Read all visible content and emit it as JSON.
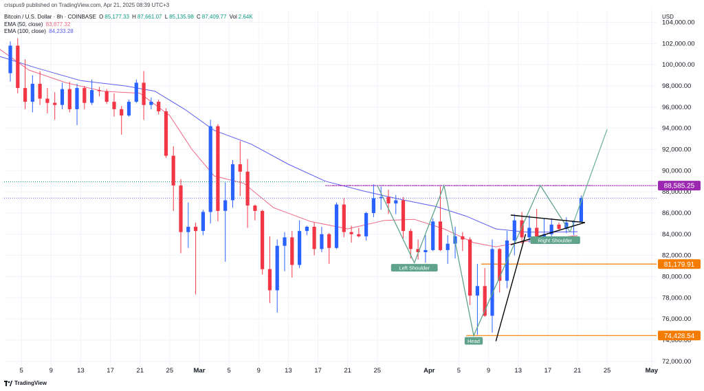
{
  "header": {
    "published": "crispus9 published on TradingView.com, Apr 21, 2025 08:39 UTC+3"
  },
  "legend": {
    "symbol": "Bitcoin / U.S. Dollar · 8h · COINBASE",
    "o_label": "O",
    "o": "85,177.33",
    "h_label": "H",
    "h": "87,661.07",
    "l_label": "L",
    "l": "85,135.98",
    "c_label": "C",
    "c": "87,409.77",
    "vol_label": "Vol",
    "vol": "2.64K",
    "ema50_label": "EMA (50, close)",
    "ema50": "83,877.32",
    "ema100_label": "EMA (100, close)",
    "ema100": "84,233.28"
  },
  "currency": "USD",
  "footer": {
    "brand": "TradingView"
  },
  "colors": {
    "up": "#2962ff",
    "down": "#f23645",
    "ema50": "#f06683",
    "ema100": "#5b5bf0",
    "pattern": "#5fa38b",
    "projection": "#6fb596",
    "support": "#f57c00",
    "resistance": "#9c27b0",
    "triangle": "#000000",
    "grid": "#f0f3fa",
    "axis_text": "#131722"
  },
  "chart_data": {
    "type": "candlestick",
    "series_name": "Bitcoin / U.S. Dollar",
    "interval": "8h",
    "y_axis": {
      "ticks": [
        72000,
        74000,
        76000,
        78000,
        80000,
        82000,
        84000,
        86000,
        88000,
        90000,
        92000,
        94000,
        96000,
        98000,
        100000,
        102000,
        104000
      ],
      "tick_labels": [
        "72,000.00",
        "74,000.00",
        "76,000.00",
        "78,000.00",
        "80,000.00",
        "82,000.00",
        "84,000.00",
        "86,000.00",
        "88,000.00",
        "90,000.00",
        "92,000.00",
        "94,000.00",
        "96,000.00",
        "98,000.00",
        "100,000.00",
        "102,000.00",
        "104,000.00"
      ],
      "range": [
        71400,
        105200
      ],
      "side": "right"
    },
    "x_axis": {
      "range": [
        "2025-02-02T16:00",
        "2025-05-01T16:00"
      ],
      "ticks": [
        {
          "date": "2025-02-05",
          "label": "5"
        },
        {
          "date": "2025-02-09",
          "label": "9"
        },
        {
          "date": "2025-02-13",
          "label": "13"
        },
        {
          "date": "2025-02-17",
          "label": "17"
        },
        {
          "date": "2025-02-21",
          "label": "21"
        },
        {
          "date": "2025-02-25",
          "label": "25"
        },
        {
          "date": "2025-03-01",
          "label": "Mar"
        },
        {
          "date": "2025-03-05",
          "label": "5"
        },
        {
          "date": "2025-03-09",
          "label": "9"
        },
        {
          "date": "2025-03-13",
          "label": "13"
        },
        {
          "date": "2025-03-17",
          "label": "17"
        },
        {
          "date": "2025-03-21",
          "label": "21"
        },
        {
          "date": "2025-03-25",
          "label": "25"
        },
        {
          "date": "2025-04-01",
          "label": "Apr"
        },
        {
          "date": "2025-04-05",
          "label": "5"
        },
        {
          "date": "2025-04-09",
          "label": "9"
        },
        {
          "date": "2025-04-13",
          "label": "13"
        },
        {
          "date": "2025-04-17",
          "label": "17"
        },
        {
          "date": "2025-04-21",
          "label": "21"
        },
        {
          "date": "2025-04-25",
          "label": "25"
        },
        {
          "date": "2025-05-01",
          "label": "May"
        }
      ]
    },
    "ema_50": [
      [
        "2025-02-02",
        101500
      ],
      [
        "2025-02-06",
        99500
      ],
      [
        "2025-02-11",
        98300
      ],
      [
        "2025-02-16",
        97500
      ],
      [
        "2025-02-21",
        97300
      ],
      [
        "2025-02-25",
        95200
      ],
      [
        "2025-02-28",
        92000
      ],
      [
        "2025-03-03",
        89500
      ],
      [
        "2025-03-07",
        88800
      ],
      [
        "2025-03-11",
        86500
      ],
      [
        "2025-03-16",
        85200
      ],
      [
        "2025-03-21",
        84500
      ],
      [
        "2025-03-26",
        85300
      ],
      [
        "2025-03-30",
        85400
      ],
      [
        "2025-04-03",
        84500
      ],
      [
        "2025-04-07",
        83200
      ],
      [
        "2025-04-10",
        82800
      ],
      [
        "2025-04-13",
        83200
      ],
      [
        "2025-04-16",
        83500
      ],
      [
        "2025-04-21",
        83877
      ]
    ],
    "ema_100": [
      [
        "2025-02-02",
        100800
      ],
      [
        "2025-02-07",
        99700
      ],
      [
        "2025-02-13",
        98500
      ],
      [
        "2025-02-19",
        98000
      ],
      [
        "2025-02-23",
        97500
      ],
      [
        "2025-02-27",
        95800
      ],
      [
        "2025-03-03",
        93800
      ],
      [
        "2025-03-08",
        92500
      ],
      [
        "2025-03-13",
        90600
      ],
      [
        "2025-03-18",
        89000
      ],
      [
        "2025-03-23",
        88100
      ],
      [
        "2025-03-28",
        87300
      ],
      [
        "2025-04-02",
        86600
      ],
      [
        "2025-04-06",
        85700
      ],
      [
        "2025-04-10",
        84500
      ],
      [
        "2025-04-14",
        84200
      ],
      [
        "2025-04-18",
        84200
      ],
      [
        "2025-04-21",
        84233
      ]
    ],
    "horizontal_levels": [
      {
        "value": 88585.25,
        "label": "88,585.25",
        "color": "#9c27b0",
        "from": "2025-03-18"
      },
      {
        "value": 81179.91,
        "label": "81,179.91",
        "color": "#f57c00",
        "from": "2025-04-08"
      },
      {
        "value": 74428.54,
        "label": "74,428.54",
        "color": "#f57c00",
        "from": "2025-04-06"
      }
    ],
    "dotted_levels": [
      {
        "value": 88950,
        "color": "#089981",
        "to": "2025-03-18"
      },
      {
        "value": 87409.77,
        "color": "#5b5bf0"
      }
    ],
    "head_and_shoulders": [
      [
        "2025-03-25",
        88600
      ],
      [
        "2025-03-30",
        81300
      ],
      [
        "2025-04-03",
        88600
      ],
      [
        "2025-04-07",
        74430
      ],
      [
        "2025-04-16",
        88600
      ],
      [
        "2025-04-20",
        84200
      ]
    ],
    "neckline": [
      [
        "2025-03-19",
        88600
      ],
      [
        "2025-04-23",
        88600
      ]
    ],
    "projection": [
      [
        "2025-04-20",
        84200
      ],
      [
        "2025-04-25",
        93900
      ]
    ],
    "triangle": [
      [
        [
          "2025-04-12",
          85800
        ],
        [
          "2025-04-22",
          85100
        ]
      ],
      [
        [
          "2025-04-12",
          83000
        ],
        [
          "2025-04-22",
          85100
        ]
      ],
      [
        [
          "2025-04-10",
          73900
        ],
        [
          "2025-04-14",
          84000
        ]
      ]
    ],
    "annotations": [
      {
        "text": "Left Shoulder",
        "date": "2025-03-30",
        "value": 80800
      },
      {
        "text": "Head",
        "date": "2025-04-07",
        "value": 73900
      },
      {
        "text": "Right Shoulder",
        "date": "2025-04-18",
        "value": 83400
      }
    ],
    "candles": [
      [
        "2025-02-03",
        99200,
        102200,
        98400,
        101800
      ],
      [
        "2025-02-04",
        101800,
        102500,
        97300,
        97800
      ],
      [
        "2025-02-05",
        97800,
        100500,
        95800,
        96500
      ],
      [
        "2025-02-06",
        96500,
        99000,
        95500,
        98200
      ],
      [
        "2025-02-07",
        98200,
        99400,
        96200,
        96800
      ],
      [
        "2025-02-08",
        96800,
        97800,
        95400,
        96400
      ],
      [
        "2025-02-09",
        96400,
        97400,
        94800,
        96200
      ],
      [
        "2025-02-10",
        96200,
        98300,
        95800,
        97700
      ],
      [
        "2025-02-11",
        97700,
        98400,
        95500,
        95800
      ],
      [
        "2025-02-12",
        95800,
        98200,
        94300,
        97800
      ],
      [
        "2025-02-13",
        97800,
        98000,
        95800,
        96400
      ],
      [
        "2025-02-14",
        96400,
        98600,
        96200,
        97600
      ],
      [
        "2025-02-15",
        97600,
        97900,
        97000,
        97500
      ],
      [
        "2025-02-16",
        97500,
        97700,
        96300,
        96500
      ],
      [
        "2025-02-17",
        96500,
        97300,
        95100,
        95800
      ],
      [
        "2025-02-18",
        95800,
        96100,
        93400,
        95200
      ],
      [
        "2025-02-19",
        95200,
        96700,
        95100,
        96500
      ],
      [
        "2025-02-20",
        96500,
        98600,
        96400,
        98300
      ],
      [
        "2025-02-21",
        98300,
        99400,
        94800,
        96200
      ],
      [
        "2025-02-22",
        96200,
        96900,
        95800,
        96500
      ],
      [
        "2025-02-23",
        96500,
        96700,
        95300,
        95600
      ],
      [
        "2025-02-24",
        95600,
        95900,
        91200,
        91400
      ],
      [
        "2025-02-25",
        91400,
        92300,
        86200,
        88600
      ],
      [
        "2025-02-26",
        88600,
        89200,
        82200,
        84200
      ],
      [
        "2025-02-27",
        84200,
        87000,
        82700,
        84700
      ],
      [
        "2025-02-28",
        84700,
        85100,
        78300,
        84300
      ],
      [
        "2025-03-01",
        84300,
        86300,
        83900,
        86100
      ],
      [
        "2025-03-02",
        86100,
        94800,
        85000,
        94200
      ],
      [
        "2025-03-03",
        94200,
        94400,
        85200,
        86200
      ],
      [
        "2025-03-04",
        86200,
        88900,
        81400,
        87200
      ],
      [
        "2025-03-05",
        87200,
        91000,
        86500,
        90600
      ],
      [
        "2025-03-06",
        90600,
        92800,
        87600,
        89900
      ],
      [
        "2025-03-07",
        89900,
        91100,
        84600,
        86700
      ],
      [
        "2025-03-08",
        86700,
        86800,
        85300,
        86200
      ],
      [
        "2025-03-09",
        86200,
        86300,
        80200,
        80700
      ],
      [
        "2025-03-10",
        80700,
        83800,
        77500,
        78700
      ],
      [
        "2025-03-11",
        78700,
        83500,
        76600,
        82900
      ],
      [
        "2025-03-12",
        82900,
        84200,
        80500,
        83700
      ],
      [
        "2025-03-13",
        83700,
        84300,
        79900,
        81100
      ],
      [
        "2025-03-14",
        81100,
        85300,
        80800,
        84300
      ],
      [
        "2025-03-15",
        84300,
        84800,
        83900,
        84700
      ],
      [
        "2025-03-16",
        84700,
        85100,
        82000,
        82600
      ],
      [
        "2025-03-17",
        82600,
        84700,
        82300,
        84000
      ],
      [
        "2025-03-18",
        84000,
        84100,
        81200,
        82700
      ],
      [
        "2025-03-19",
        82700,
        87000,
        82600,
        86800
      ],
      [
        "2025-03-20",
        86800,
        87400,
        83700,
        84200
      ],
      [
        "2025-03-21",
        84200,
        84800,
        83200,
        84000
      ],
      [
        "2025-03-22",
        84000,
        84600,
        83700,
        83800
      ],
      [
        "2025-03-23",
        83800,
        86100,
        83400,
        86000
      ],
      [
        "2025-03-24",
        86000,
        88700,
        85600,
        87400
      ],
      [
        "2025-03-25",
        87400,
        88500,
        86300,
        87500
      ],
      [
        "2025-03-26",
        87500,
        88200,
        85900,
        86900
      ],
      [
        "2025-03-27",
        86900,
        87700,
        85900,
        87200
      ],
      [
        "2025-03-28",
        87200,
        87500,
        83600,
        84300
      ],
      [
        "2025-03-29",
        84300,
        84500,
        81700,
        82600
      ],
      [
        "2025-03-30",
        82600,
        83500,
        81600,
        82300
      ],
      [
        "2025-03-31",
        82300,
        83900,
        81300,
        82500
      ],
      [
        "2025-04-01",
        82500,
        85500,
        82400,
        85200
      ],
      [
        "2025-04-02",
        85200,
        88500,
        82400,
        82500
      ],
      [
        "2025-04-03",
        82500,
        83900,
        81200,
        83100
      ],
      [
        "2025-04-04",
        83100,
        84700,
        81700,
        83800
      ],
      [
        "2025-04-05",
        83800,
        84200,
        82400,
        83500
      ],
      [
        "2025-04-06",
        83500,
        83700,
        77300,
        78200
      ],
      [
        "2025-04-07",
        78200,
        81200,
        74500,
        79100
      ],
      [
        "2025-04-08",
        79100,
        80800,
        76200,
        76300
      ],
      [
        "2025-04-09",
        76300,
        83500,
        74700,
        82600
      ],
      [
        "2025-04-10",
        82600,
        82700,
        78500,
        79600
      ],
      [
        "2025-04-11",
        79600,
        84300,
        78900,
        83400
      ],
      [
        "2025-04-12",
        83400,
        85900,
        82000,
        85300
      ],
      [
        "2025-04-13",
        85300,
        86100,
        83100,
        83700
      ],
      [
        "2025-04-14",
        83700,
        85800,
        83200,
        84600
      ],
      [
        "2025-04-15",
        84600,
        86400,
        83600,
        83700
      ],
      [
        "2025-04-16",
        83700,
        85500,
        83100,
        84000
      ],
      [
        "2025-04-17",
        84000,
        85500,
        83800,
        84900
      ],
      [
        "2025-04-18",
        84900,
        85100,
        84300,
        84500
      ],
      [
        "2025-04-19",
        84500,
        85600,
        84100,
        85100
      ],
      [
        "2025-04-20",
        85100,
        85300,
        83900,
        85200
      ],
      [
        "2025-04-21",
        85200,
        87661,
        85136,
        87410
      ]
    ]
  }
}
